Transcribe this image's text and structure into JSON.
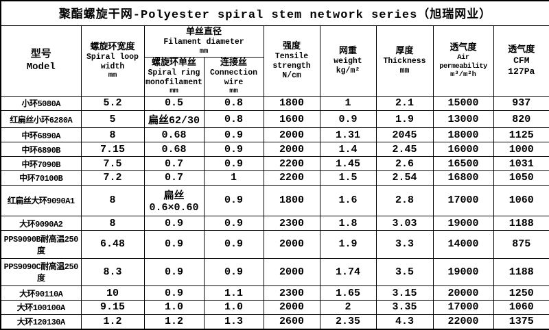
{
  "title": "聚酯螺旋干网-Polyester spiral stem network series（旭瑞网业）",
  "table": {
    "col_keys": [
      "model",
      "spiral_width",
      "monofilament",
      "connection",
      "strength",
      "weight",
      "thickness",
      "permeability",
      "cfm"
    ],
    "headers": {
      "model": {
        "zh": "型号",
        "en": "Model"
      },
      "spiral_width": {
        "zh": "螺旋环宽度",
        "en": "Spiral loop width",
        "unit": "mm"
      },
      "filament_group": {
        "zh": "单丝直径",
        "en": "Filament diameter",
        "unit": "mm"
      },
      "monofilament": {
        "zh": "螺旋环单丝",
        "en": "Spiral ring monofilament",
        "unit": "mm"
      },
      "connection": {
        "zh": "连接丝",
        "en": "Connection wire",
        "unit": "mm"
      },
      "strength": {
        "zh": "强度",
        "en": "Tensile strength",
        "unit": "N/cm"
      },
      "weight": {
        "zh": "网重",
        "en": "weight",
        "unit": "kg/m²"
      },
      "thickness": {
        "zh": "厚度",
        "en": "Thickness",
        "unit": "mm"
      },
      "permeability": {
        "zh": "透气度",
        "en": "Air permeability",
        "unit": "m³/m²h"
      },
      "cfm": {
        "zh": "透气度",
        "en": "CFM",
        "unit": "127Pa"
      }
    },
    "rows": [
      [
        "小环5080A",
        "5.2",
        "0.5",
        "0.8",
        "1800",
        "1",
        "2.1",
        "15000",
        "937"
      ],
      [
        "红扁丝小环6280A",
        "5",
        "扁丝62/30",
        "0.8",
        "1600",
        "0.9",
        "1.9",
        "13000",
        "820"
      ],
      [
        "中环6890A",
        "8",
        "0.68",
        "0.9",
        "2000",
        "1.31",
        "2045",
        "18000",
        "1125"
      ],
      [
        "中环6890B",
        "7.15",
        "0.68",
        "0.9",
        "2000",
        "1.4",
        "2.45",
        "16000",
        "1000"
      ],
      [
        "中环7090B",
        "7.5",
        "0.7",
        "0.9",
        "2200",
        "1.45",
        "2.6",
        "16500",
        "1031"
      ],
      [
        "中环70100B",
        "7.2",
        "0.7",
        "1",
        "2200",
        "1.5",
        "2.54",
        "16800",
        "1050"
      ],
      [
        "红扁丝大环9090A1",
        "8",
        "扁丝0.6×0.60",
        "0.9",
        "1800",
        "1.6",
        "2.8",
        "17000",
        "1060"
      ],
      [
        "大环9090A2",
        "8",
        "0.9",
        "0.9",
        "2300",
        "1.8",
        "3.03",
        "19000",
        "1188"
      ],
      [
        "PPS9090B耐高温250度",
        "6.48",
        "0.9",
        "0.9",
        "2000",
        "1.9",
        "3.3",
        "14000",
        "875"
      ],
      [
        "PPS9090C耐高温250度",
        "8.3",
        "0.9",
        "0.9",
        "2000",
        "1.74",
        "3.5",
        "19000",
        "1188"
      ],
      [
        "大环90110A",
        "10",
        "0.9",
        "1.1",
        "2300",
        "1.65",
        "3.15",
        "20000",
        "1250"
      ],
      [
        "大环100100A",
        "9.15",
        "1.0",
        "1.0",
        "2000",
        "2",
        "3.35",
        "17000",
        "1060"
      ],
      [
        "大环120130A",
        "1.2",
        "1.2",
        "1.3",
        "2600",
        "2.35",
        "4.3",
        "22000",
        "1375"
      ]
    ]
  }
}
